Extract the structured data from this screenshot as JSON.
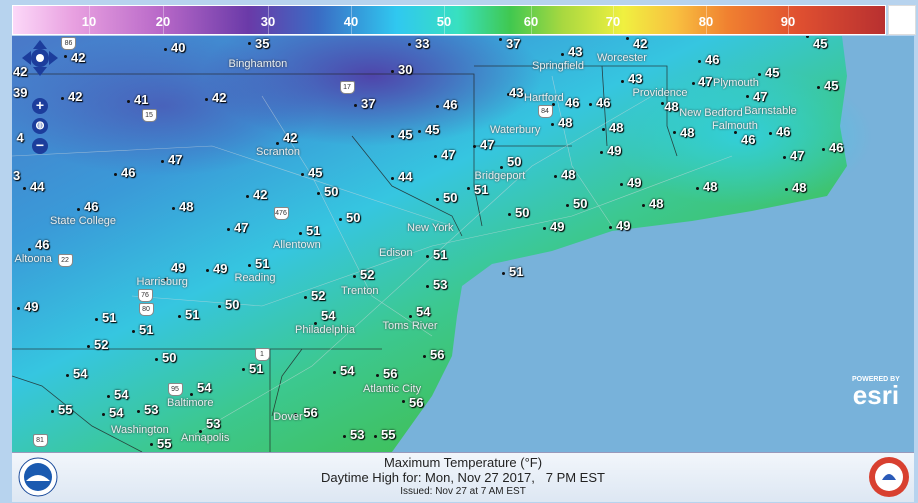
{
  "legend": {
    "ticks": [
      "10",
      "20",
      "30",
      "40",
      "50",
      "60",
      "70",
      "80",
      "90"
    ],
    "colors": [
      "#fcd8f8",
      "#b868c8",
      "#6a3aa8",
      "#30c8f0",
      "#40c850",
      "#f0f040",
      "#f08030",
      "#b83030"
    ]
  },
  "map": {
    "colors": {
      "ocean": "#78b2da",
      "cold": "#5a58b8",
      "cool": "#38c4e0",
      "mild": "#40c060",
      "warm": "#38b848"
    },
    "temperatures": [
      "42",
      "40",
      "35",
      "33",
      "37",
      "43",
      "42",
      "45",
      "46",
      "47",
      "45",
      "45",
      "47",
      "42",
      "39",
      "42",
      "41",
      "42",
      "37",
      "30",
      "46",
      "43",
      "46",
      "46",
      "43",
      "48",
      "45",
      "45",
      "48",
      "48",
      "48",
      "46",
      "46",
      "4",
      "42",
      "47",
      "47",
      "49",
      "47",
      "46",
      "47",
      "46",
      "45",
      "44",
      "50",
      "51",
      "48",
      "49",
      "48",
      "48",
      "44",
      "3",
      "50",
      "42",
      "50",
      "46",
      "48",
      "50",
      "48",
      "50",
      "50",
      "47",
      "51",
      "49",
      "49",
      "46",
      "51",
      "51",
      "51",
      "49",
      "49",
      "52",
      "50",
      "53",
      "52",
      "49",
      "51",
      "51",
      "51",
      "54",
      "54",
      "52",
      "56",
      "50",
      "51",
      "54",
      "56",
      "54",
      "54",
      "54",
      "56",
      "55",
      "54",
      "53",
      "56",
      "53",
      "53",
      "55",
      "55"
    ],
    "cities": [
      "Binghamton",
      "Springfield",
      "Worcester",
      "Providence",
      "Plymouth",
      "Barnstable",
      "New Bedford",
      "Falmouth",
      "Hartford",
      "Waterbury",
      "Scranton",
      "Bridgeport",
      "State College",
      "New York",
      "Allentown",
      "Altoona",
      "Edison",
      "Reading",
      "Harrisburg",
      "Trenton",
      "Toms River",
      "Philadelphia",
      "Baltimore",
      "Atlantic City",
      "Dover",
      "Annapolis",
      "Washington"
    ],
    "shields": [
      "86",
      "17",
      "15",
      "84",
      "476",
      "80",
      "22",
      "76",
      "1",
      "95",
      "81"
    ],
    "controls": {
      "pan": "pan-arrows",
      "zoom_in": "+",
      "zoom_out": "−",
      "globe": "globe"
    }
  },
  "esri": {
    "powered_by": "POWERED BY",
    "brand": "esri"
  },
  "footer": {
    "title": "Maximum Temperature (°F)",
    "subtitle": "Daytime High for: Mon, Nov 27 2017,   7 PM EST",
    "issued": "Issued: Nov 27 at 7 AM EST",
    "left_logo": "NOAA",
    "right_logo": "NWS"
  }
}
